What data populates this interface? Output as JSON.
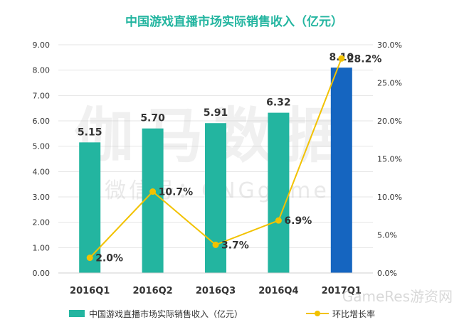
{
  "chart_data": {
    "type": "bar",
    "title": "中国游戏直播市场实际销售收入（亿元）",
    "categories": [
      "2016Q1",
      "2016Q2",
      "2016Q3",
      "2016Q4",
      "2017Q1"
    ],
    "series": [
      {
        "name": "中国游戏直播市场实际销售收入（亿元）",
        "type": "bar",
        "axis": "left",
        "values": [
          5.15,
          5.7,
          5.91,
          6.32,
          8.1
        ],
        "labels": [
          "5.15",
          "5.70",
          "5.91",
          "6.32",
          "8.10"
        ],
        "colors": [
          "#23b5a0",
          "#23b5a0",
          "#23b5a0",
          "#23b5a0",
          "#1565c0"
        ]
      },
      {
        "name": "环比增长率",
        "type": "line",
        "axis": "right",
        "values": [
          2.0,
          10.7,
          3.7,
          6.9,
          28.2
        ],
        "labels": [
          "2.0%",
          "10.7%",
          "3.7%",
          "6.9%",
          "28.2%"
        ],
        "color": "#f2c200"
      }
    ],
    "left_axis": {
      "ylim": [
        0,
        9
      ],
      "ticks": [
        0,
        1,
        2,
        3,
        4,
        5,
        6,
        7,
        8,
        9
      ],
      "tick_labels": [
        "0.00",
        "1.00",
        "2.00",
        "3.00",
        "4.00",
        "5.00",
        "6.00",
        "7.00",
        "8.00",
        "9.00"
      ]
    },
    "right_axis": {
      "ylim": [
        0,
        30
      ],
      "ticks": [
        0,
        5,
        10,
        15,
        20,
        25,
        30
      ],
      "tick_labels": [
        "0.0%",
        "5.0%",
        "10.0%",
        "15.0%",
        "20.0%",
        "25.0%",
        "30.0%"
      ]
    },
    "grid": true,
    "legend_position": "bottom",
    "colors": {
      "title": "#23b5a0",
      "text": "#333333",
      "grid": "#e5e5e5"
    }
  },
  "watermarks": {
    "main": "伽马数据",
    "sub": "微信号：CNGgame",
    "corner": "GameRes游资网"
  }
}
